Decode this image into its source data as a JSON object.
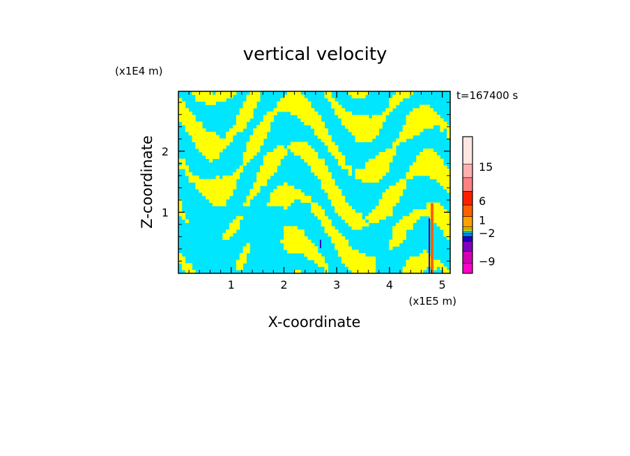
{
  "chart_data": {
    "type": "heatmap",
    "title": "vertical velocity",
    "xlabel": "X-coordinate",
    "ylabel": "Z-coordinate",
    "x_unit": "(x1E5 m)",
    "y_unit": "(x1E4 m)",
    "time_label": "t=167400 s",
    "xlim": [
      0,
      5.15
    ],
    "ylim": [
      0,
      2.98
    ],
    "x_ticks": [
      1,
      2,
      3,
      4,
      5
    ],
    "y_ticks": [
      1,
      2
    ],
    "x_tick_labels": [
      "1",
      "2",
      "3",
      "4",
      "5"
    ],
    "y_tick_labels": [
      "1",
      "2"
    ],
    "colorbar": {
      "levels": [
        {
          "color": "#ff00c8"
        },
        {
          "color": "#d400b0"
        },
        {
          "color": "#8000c0"
        },
        {
          "color": "#2000c8"
        },
        {
          "color": "#0080ff"
        },
        {
          "color": "#00e6ff"
        },
        {
          "color": "#ffff00"
        },
        {
          "color": "#ffd700"
        },
        {
          "color": "#ffa000"
        },
        {
          "color": "#ff6000"
        },
        {
          "color": "#ff2000"
        },
        {
          "color": "#ff8080"
        },
        {
          "color": "#ffb0b0"
        },
        {
          "color": "#ffe6e0"
        }
      ],
      "labels": [
        {
          "value": -9,
          "text": "−9"
        },
        {
          "value": -2,
          "text": "−2"
        },
        {
          "value": 1,
          "text": "1"
        },
        {
          "value": 6,
          "text": "6"
        },
        {
          "value": 15,
          "text": "15"
        }
      ]
    },
    "field_colors": {
      "updraft": "#ffff00",
      "downdraft": "#00e6ff",
      "strong_up": "#ff6000",
      "strong_down": "#3000c0"
    }
  }
}
